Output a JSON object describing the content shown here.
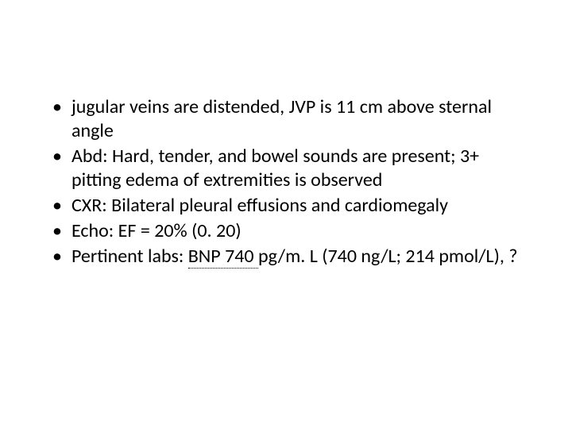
{
  "slide": {
    "background_color": "#ffffff",
    "text_color": "#000000",
    "font_family": "Calibri",
    "body_fontsize": 24,
    "bullets": [
      {
        "text": "jugular veins are distended, JVP is 11 cm above sternal angle"
      },
      {
        "text": "Abd: Hard, tender, and bowel sounds are present; 3+ pitting edema of extremities is observed"
      },
      {
        "text": "CXR: Bilateral pleural effusions and cardiomegaly"
      },
      {
        "text": "Echo: EF = 20% (0. 20)"
      },
      {
        "prefix": "Pertinent labs: ",
        "underlined": "BNP 740 ",
        "suffix": "pg/m. L (740 ng/L; 214 pmol/L), ?"
      }
    ]
  }
}
